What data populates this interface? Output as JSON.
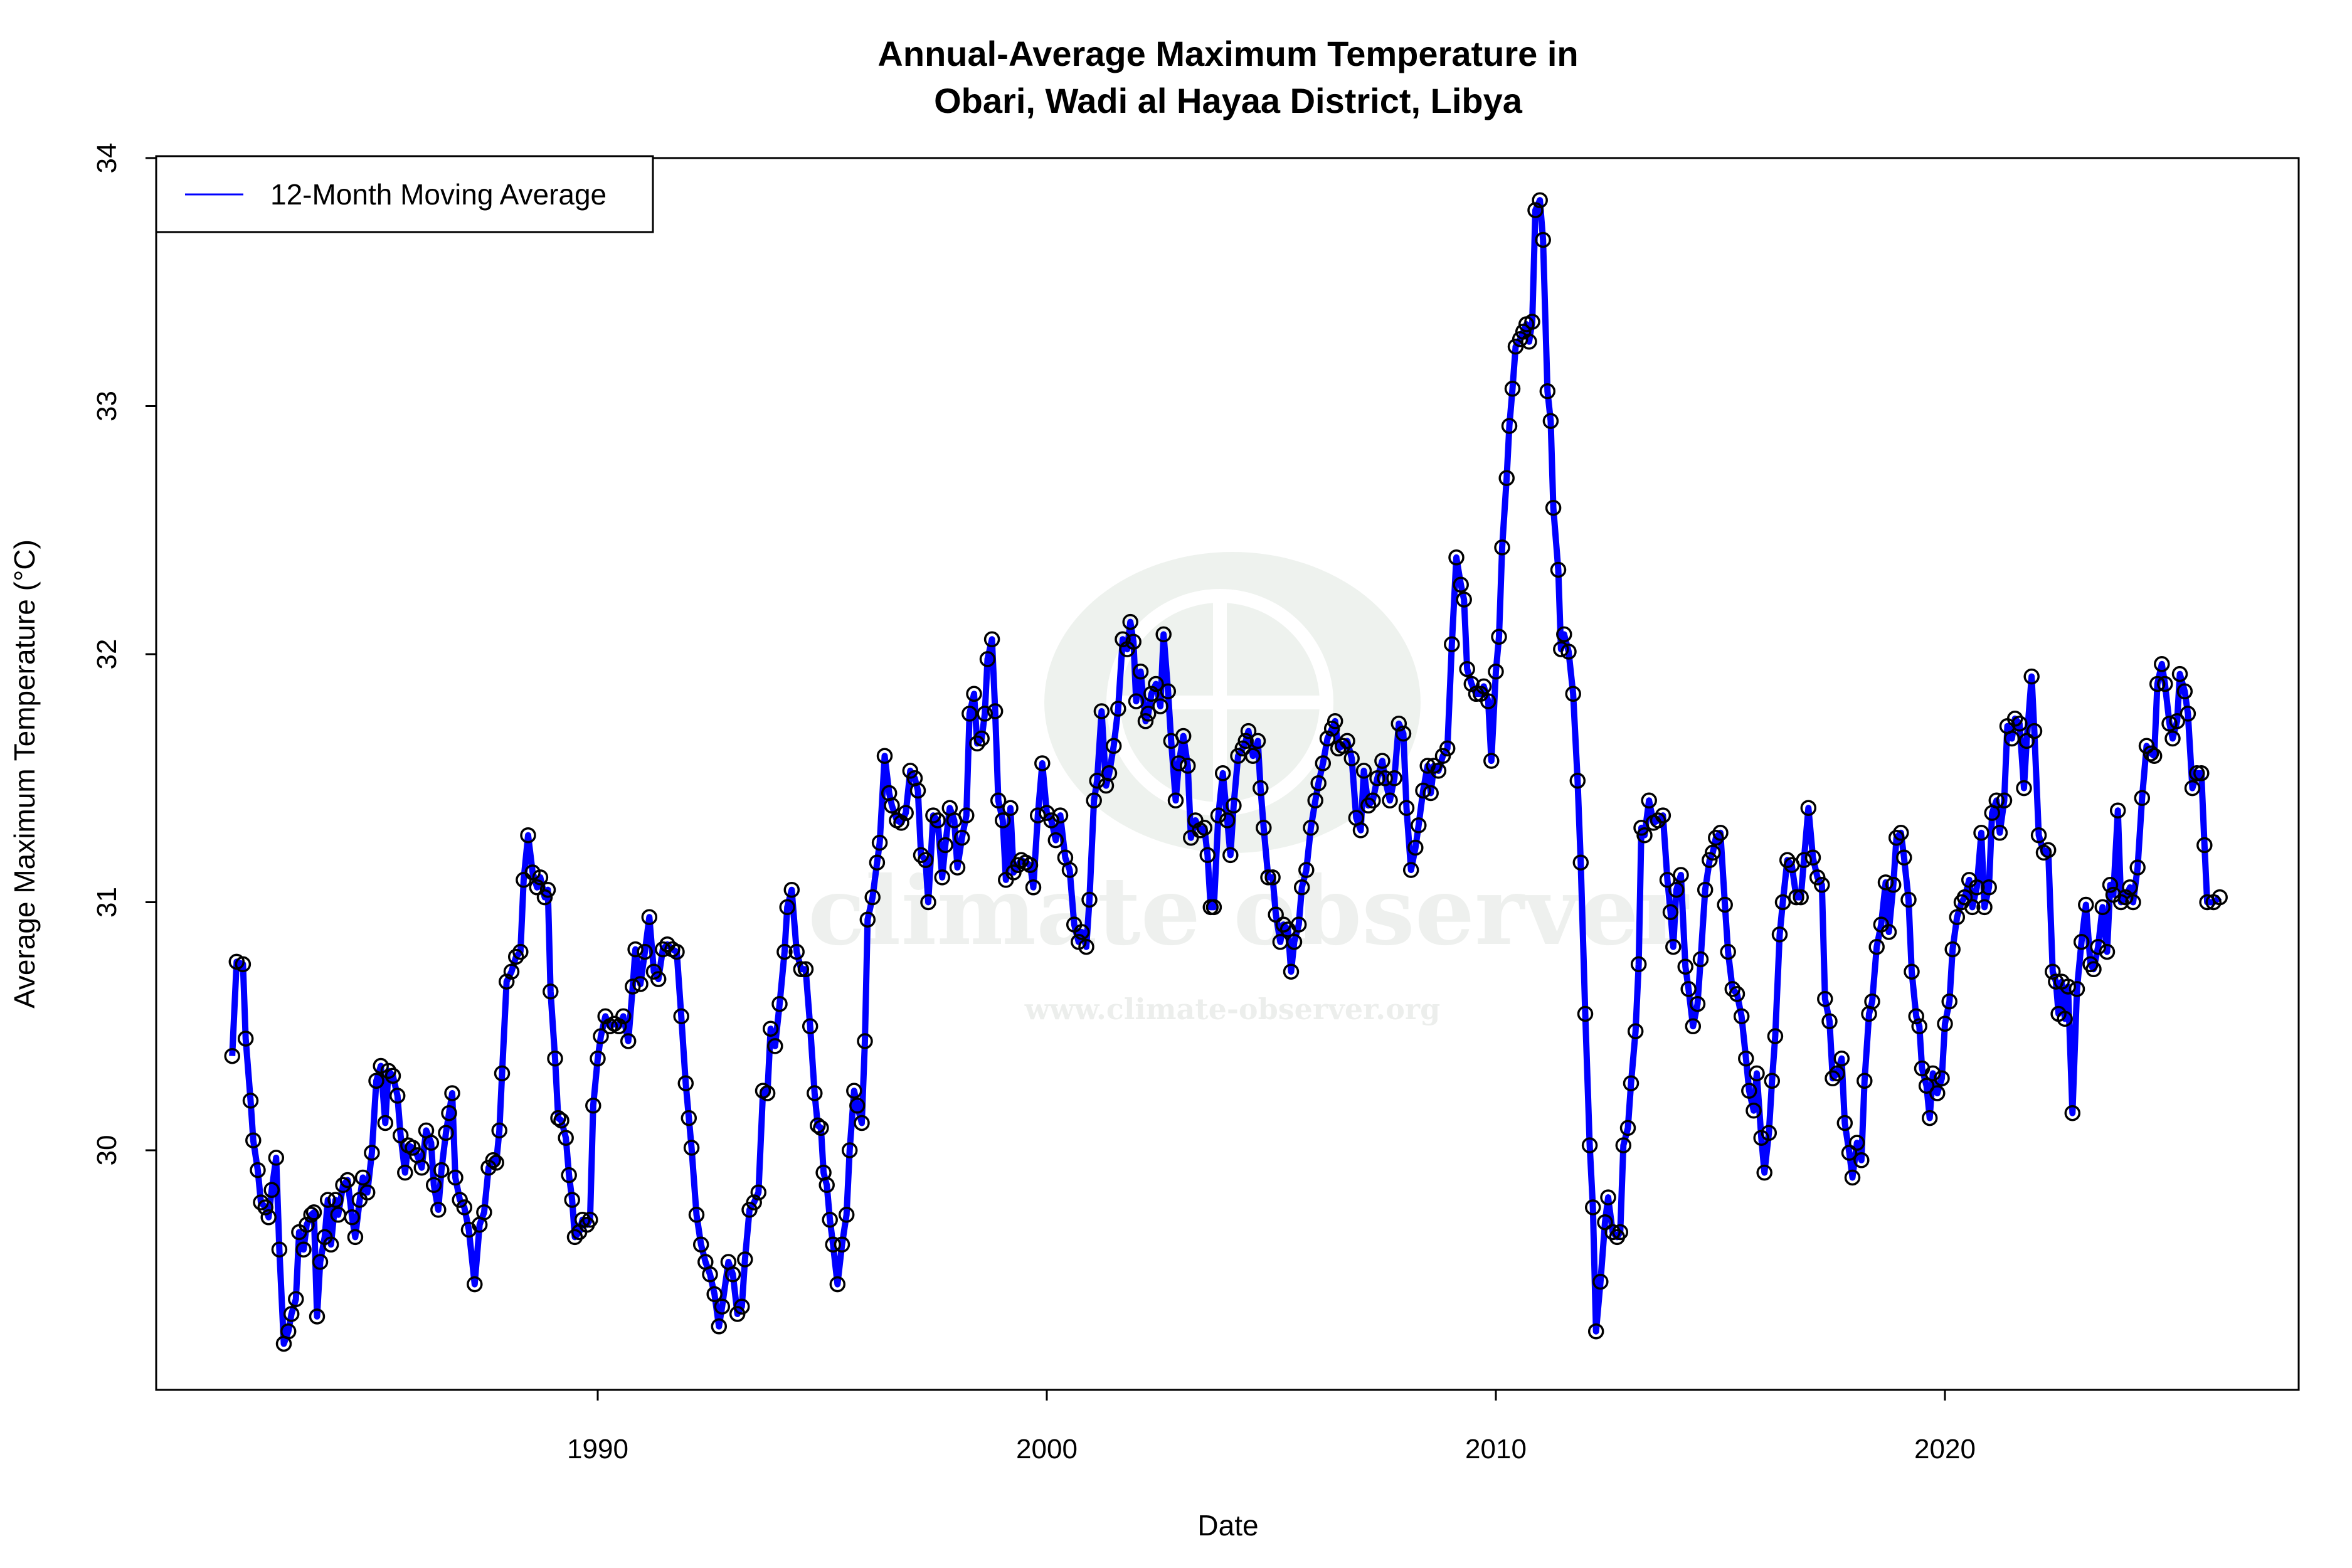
{
  "chart_data": {
    "type": "line",
    "title": "Annual-Average Maximum Temperature in\nObari, Wadi al Hayaa District, Libya",
    "title_lines": [
      "Annual-Average Maximum Temperature in",
      "Obari, Wadi al Hayaa District, Libya"
    ],
    "xlabel": "Date",
    "ylabel": "Average Maximum Temperature (°C)",
    "x_ticks": [
      "1990",
      "2000",
      "2010",
      "2020"
    ],
    "y_ticks": [
      "30",
      "31",
      "32",
      "33",
      "34"
    ],
    "xlim": [
      1981.7,
      2026.3
    ],
    "ylim": [
      29.2,
      34.0
    ],
    "grid": false,
    "legend_position": "top-left",
    "watermark": {
      "name": "climate observer",
      "url": "www.climate-observer.org"
    },
    "colors": {
      "line": "#0000FF",
      "points": "#000000",
      "watermark": "#e9efea"
    },
    "series": [
      {
        "name": "12-Month Moving Average",
        "markers": "open-circle",
        "x": [
          1981.86,
          1981.96,
          1982.1,
          1982.16,
          1982.27,
          1982.33,
          1982.43,
          1982.5,
          1982.6,
          1982.67,
          1982.74,
          1982.84,
          1982.91,
          1983.01,
          1983.11,
          1983.18,
          1983.28,
          1983.35,
          1983.45,
          1983.52,
          1983.62,
          1983.68,
          1983.75,
          1983.82,
          1983.92,
          1983.99,
          1984.06,
          1984.16,
          1984.22,
          1984.33,
          1984.43,
          1984.53,
          1984.6,
          1984.7,
          1984.77,
          1984.87,
          1984.97,
          1985.07,
          1985.17,
          1985.27,
          1985.34,
          1985.44,
          1985.54,
          1985.61,
          1985.71,
          1985.78,
          1985.88,
          1985.98,
          1986.08,
          1986.18,
          1986.29,
          1986.35,
          1986.45,
          1986.52,
          1986.62,
          1986.69,
          1986.76,
          1986.83,
          1986.93,
          1987.03,
          1987.13,
          1987.26,
          1987.37,
          1987.47,
          1987.57,
          1987.67,
          1987.74,
          1987.81,
          1987.87,
          1987.97,
          1988.08,
          1988.18,
          1988.28,
          1988.35,
          1988.45,
          1988.55,
          1988.65,
          1988.72,
          1988.82,
          1988.89,
          1988.95,
          1989.05,
          1989.12,
          1989.19,
          1989.29,
          1989.36,
          1989.43,
          1989.49,
          1989.59,
          1989.66,
          1989.76,
          1989.83,
          1989.9,
          1990.0,
          1990.07,
          1990.17,
          1990.27,
          1990.37,
          1990.47,
          1990.57,
          1990.68,
          1990.78,
          1990.84,
          1990.95,
          1991.05,
          1991.15,
          1991.25,
          1991.35,
          1991.45,
          1991.55,
          1991.66,
          1991.76,
          1991.86,
          1991.96,
          1992.03,
          1992.09,
          1992.2,
          1992.3,
          1992.4,
          1992.5,
          1992.6,
          1992.7,
          1992.77,
          1992.91,
          1993.01,
          1993.11,
          1993.21,
          1993.28,
          1993.38,
          1993.48,
          1993.58,
          1993.68,
          1993.78,
          1993.85,
          1993.95,
          1994.05,
          1994.16,
          1994.22,
          1994.32,
          1994.43,
          1994.53,
          1994.63,
          1994.73,
          1994.83,
          1994.9,
          1994.97,
          1995.03,
          1995.1,
          1995.17,
          1995.24,
          1995.34,
          1995.44,
          1995.54,
          1995.61,
          1995.71,
          1995.78,
          1995.88,
          1995.95,
          1996.01,
          1996.12,
          1996.22,
          1996.28,
          1996.39,
          1996.49,
          1996.55,
          1996.66,
          1996.76,
          1996.86,
          1996.96,
          1997.06,
          1997.13,
          1997.2,
          1997.3,
          1997.36,
          1997.47,
          1997.57,
          1997.67,
          1997.74,
          1997.84,
          1997.94,
          1998.01,
          1998.11,
          1998.21,
          1998.28,
          1998.38,
          1998.45,
          1998.55,
          1998.62,
          1998.68,
          1998.78,
          1998.85,
          1998.92,
          1999.02,
          1999.09,
          1999.19,
          1999.26,
          1999.36,
          1999.43,
          1999.53,
          1999.63,
          1999.7,
          1999.8,
          1999.9,
          2000.0,
          2000.1,
          2000.2,
          2000.3,
          2000.41,
          2000.51,
          2000.61,
          2000.71,
          2000.78,
          2000.88,
          2000.95,
          2001.05,
          2001.12,
          2001.22,
          2001.32,
          2001.39,
          2001.49,
          2001.59,
          2001.69,
          2001.79,
          2001.86,
          2001.93,
          2001.99,
          2002.09,
          2002.2,
          2002.26,
          2002.33,
          2002.43,
          2002.53,
          2002.6,
          2002.7,
          2002.77,
          2002.87,
          2002.94,
          2003.04,
          2003.14,
          2003.21,
          2003.31,
          2003.41,
          2003.51,
          2003.58,
          2003.65,
          2003.72,
          2003.82,
          2003.92,
          2004.02,
          2004.09,
          2004.16,
          2004.26,
          2004.36,
          2004.43,
          2004.49,
          2004.59,
          2004.7,
          2004.76,
          2004.83,
          2004.93,
          2005.03,
          2005.1,
          2005.2,
          2005.27,
          2005.37,
          2005.44,
          2005.51,
          2005.61,
          2005.68,
          2005.78,
          2005.88,
          2005.98,
          2006.05,
          2006.15,
          2006.25,
          2006.35,
          2006.42,
          2006.49,
          2006.59,
          2006.69,
          2006.79,
          2006.89,
          2006.99,
          2007.06,
          2007.16,
          2007.26,
          2007.36,
          2007.47,
          2007.53,
          2007.64,
          2007.74,
          2007.84,
          2007.94,
          2008.01,
          2008.11,
          2008.21,
          2008.28,
          2008.38,
          2008.48,
          2008.55,
          2008.62,
          2008.72,
          2008.82,
          2008.92,
          2009.02,
          2009.12,
          2009.22,
          2009.29,
          2009.36,
          2009.46,
          2009.56,
          2009.66,
          2009.73,
          2009.83,
          2009.9,
          2010.0,
          2010.07,
          2010.14,
          2010.24,
          2010.3,
          2010.37,
          2010.44,
          2010.54,
          2010.61,
          2010.68,
          2010.74,
          2010.81,
          2010.88,
          2010.98,
          2011.05,
          2011.15,
          2011.22,
          2011.28,
          2011.39,
          2011.45,
          2011.52,
          2011.62,
          2011.72,
          2011.82,
          2011.89,
          2011.99,
          2012.09,
          2012.16,
          2012.23,
          2012.33,
          2012.43,
          2012.5,
          2012.6,
          2012.7,
          2012.77,
          2012.84,
          2012.94,
          2013.01,
          2013.11,
          2013.18,
          2013.24,
          2013.31,
          2013.41,
          2013.51,
          2013.61,
          2013.72,
          2013.82,
          2013.89,
          2013.95,
          2014.02,
          2014.12,
          2014.22,
          2014.29,
          2014.39,
          2014.49,
          2014.56,
          2014.66,
          2014.76,
          2014.83,
          2014.9,
          2015.0,
          2015.1,
          2015.17,
          2015.27,
          2015.37,
          2015.47,
          2015.57,
          2015.64,
          2015.74,
          2015.81,
          2015.91,
          2015.98,
          2016.08,
          2016.15,
          2016.22,
          2016.32,
          2016.39,
          2016.49,
          2016.59,
          2016.69,
          2016.79,
          2016.86,
          2016.96,
          2017.06,
          2017.16,
          2017.26,
          2017.33,
          2017.43,
          2017.5,
          2017.6,
          2017.7,
          2017.77,
          2017.87,
          2017.94,
          2018.04,
          2018.14,
          2018.21,
          2018.31,
          2018.38,
          2018.48,
          2018.58,
          2018.68,
          2018.75,
          2018.85,
          2018.92,
          2019.02,
          2019.09,
          2019.19,
          2019.26,
          2019.36,
          2019.43,
          2019.49,
          2019.59,
          2019.66,
          2019.73,
          2019.83,
          2019.93,
          2020.0,
          2020.1,
          2020.17,
          2020.27,
          2020.37,
          2020.44,
          2020.54,
          2020.61,
          2020.71,
          2020.81,
          2020.88,
          2020.98,
          2021.05,
          2021.15,
          2021.22,
          2021.32,
          2021.39,
          2021.49,
          2021.56,
          2021.66,
          2021.76,
          2021.82,
          2021.93,
          2021.99,
          2022.09,
          2022.2,
          2022.3,
          2022.4,
          2022.47,
          2022.53,
          2022.6,
          2022.67,
          2022.74,
          2022.84,
          2022.94,
          2023.04,
          2023.14,
          2023.24,
          2023.31,
          2023.41,
          2023.51,
          2023.61,
          2023.68,
          2023.75,
          2023.85,
          2023.92,
          2024.02,
          2024.12,
          2024.19,
          2024.29,
          2024.39,
          2024.49,
          2024.59,
          2024.66,
          2024.73,
          2024.83,
          2024.9,
          2025.0,
          2025.07,
          2025.17,
          2025.23,
          2025.34,
          2025.41,
          2025.51,
          2025.61,
          2025.71,
          2025.78,
          2025.84,
          2025.98,
          2026.12
        ],
        "y": [
          30.38,
          30.76,
          30.75,
          30.45,
          30.2,
          30.04,
          29.92,
          29.79,
          29.77,
          29.73,
          29.84,
          29.97,
          29.6,
          29.22,
          29.27,
          29.34,
          29.4,
          29.67,
          29.6,
          29.7,
          29.74,
          29.75,
          29.33,
          29.55,
          29.65,
          29.8,
          29.62,
          29.8,
          29.74,
          29.86,
          29.88,
          29.73,
          29.65,
          29.8,
          29.89,
          29.83,
          29.99,
          30.28,
          30.34,
          30.11,
          30.32,
          30.3,
          30.22,
          30.06,
          29.91,
          30.02,
          30.01,
          29.98,
          29.93,
          30.08,
          30.03,
          29.86,
          29.76,
          29.92,
          30.07,
          30.15,
          30.23,
          29.89,
          29.8,
          29.77,
          29.68,
          29.46,
          29.7,
          29.75,
          29.93,
          29.96,
          29.95,
          30.08,
          30.31,
          30.68,
          30.72,
          30.78,
          30.8,
          31.09,
          31.27,
          31.12,
          31.06,
          31.1,
          31.02,
          31.05,
          30.64,
          30.37,
          30.13,
          30.12,
          30.05,
          29.9,
          29.8,
          29.65,
          29.67,
          29.72,
          29.7,
          29.72,
          30.18,
          30.37,
          30.46,
          30.54,
          30.5,
          30.51,
          30.5,
          30.54,
          30.44,
          30.66,
          30.81,
          30.67,
          30.8,
          30.94,
          30.72,
          30.69,
          30.81,
          30.83,
          30.81,
          30.8,
          30.54,
          30.27,
          30.13,
          30.01,
          29.74,
          29.62,
          29.55,
          29.5,
          29.42,
          29.29,
          29.37,
          29.55,
          29.5,
          29.34,
          29.37,
          29.56,
          29.76,
          29.79,
          29.83,
          30.24,
          30.23,
          30.49,
          30.42,
          30.59,
          30.8,
          30.98,
          31.05,
          30.8,
          30.73,
          30.73,
          30.5,
          30.23,
          30.1,
          30.09,
          29.91,
          29.86,
          29.72,
          29.62,
          29.46,
          29.62,
          29.74,
          30.0,
          30.24,
          30.18,
          30.11,
          30.44,
          30.93,
          31.02,
          31.16,
          31.24,
          31.59,
          31.44,
          31.39,
          31.33,
          31.32,
          31.36,
          31.53,
          31.5,
          31.45,
          31.19,
          31.17,
          31.0,
          31.35,
          31.33,
          31.1,
          31.23,
          31.38,
          31.33,
          31.14,
          31.26,
          31.35,
          31.76,
          31.84,
          31.64,
          31.66,
          31.76,
          31.98,
          32.06,
          31.77,
          31.41,
          31.33,
          31.09,
          31.38,
          31.12,
          31.15,
          31.17,
          31.16,
          31.15,
          31.06,
          31.35,
          31.56,
          31.36,
          31.33,
          31.25,
          31.35,
          31.18,
          31.13,
          30.91,
          30.84,
          30.88,
          30.82,
          31.01,
          31.41,
          31.49,
          31.77,
          31.47,
          31.52,
          31.63,
          31.78,
          32.06,
          32.02,
          32.13,
          32.05,
          31.81,
          31.93,
          31.73,
          31.76,
          31.84,
          31.88,
          31.79,
          32.08,
          31.85,
          31.65,
          31.41,
          31.56,
          31.67,
          31.55,
          31.26,
          31.33,
          31.29,
          31.3,
          31.19,
          30.98,
          30.98,
          31.35,
          31.52,
          31.33,
          31.19,
          31.39,
          31.59,
          31.62,
          31.65,
          31.69,
          31.59,
          31.65,
          31.46,
          31.3,
          31.1,
          31.1,
          30.95,
          30.84,
          30.91,
          30.89,
          30.72,
          30.84,
          30.91,
          31.06,
          31.13,
          31.3,
          31.41,
          31.48,
          31.56,
          31.66,
          31.7,
          31.73,
          31.62,
          31.63,
          31.65,
          31.58,
          31.34,
          31.29,
          31.53,
          31.39,
          31.41,
          31.5,
          31.57,
          31.5,
          31.41,
          31.5,
          31.72,
          31.68,
          31.38,
          31.13,
          31.22,
          31.31,
          31.45,
          31.55,
          31.44,
          31.55,
          31.53,
          31.59,
          31.62,
          32.04,
          32.39,
          32.28,
          32.22,
          31.94,
          31.88,
          31.84,
          31.84,
          31.87,
          31.81,
          31.57,
          31.93,
          32.07,
          32.43,
          32.71,
          32.92,
          33.07,
          33.24,
          33.27,
          33.3,
          33.33,
          33.26,
          33.34,
          33.79,
          33.83,
          33.67,
          33.06,
          32.94,
          32.59,
          32.34,
          32.02,
          32.08,
          32.01,
          31.84,
          31.49,
          31.16,
          30.55,
          30.02,
          29.77,
          29.27,
          29.47,
          29.71,
          29.81,
          29.67,
          29.65,
          29.67,
          30.02,
          30.09,
          30.27,
          30.48,
          30.75,
          31.3,
          31.27,
          31.41,
          31.32,
          31.33,
          31.35,
          31.09,
          30.96,
          30.82,
          31.05,
          31.11,
          30.74,
          30.65,
          30.5,
          30.59,
          30.77,
          31.05,
          31.17,
          31.2,
          31.26,
          31.28,
          30.99,
          30.8,
          30.65,
          30.63,
          30.54,
          30.37,
          30.24,
          30.16,
          30.31,
          30.05,
          29.91,
          30.07,
          30.28,
          30.46,
          30.87,
          31.0,
          31.17,
          31.15,
          31.02,
          31.02,
          31.17,
          31.38,
          31.18,
          31.1,
          31.07,
          30.61,
          30.52,
          30.29,
          30.31,
          30.37,
          30.11,
          29.99,
          29.89,
          30.03,
          29.96,
          30.28,
          30.55,
          30.6,
          30.82,
          30.91,
          31.08,
          30.88,
          31.07,
          31.26,
          31.28,
          31.18,
          31.01,
          30.72,
          30.54,
          30.5,
          30.33,
          30.26,
          30.13,
          30.31,
          30.23,
          30.29,
          30.51,
          30.6,
          30.81,
          30.94,
          31.0,
          31.02,
          31.09,
          30.98,
          31.06,
          31.28,
          30.98,
          31.06,
          31.36,
          31.41,
          31.28,
          31.41,
          31.71,
          31.66,
          31.74,
          31.72,
          31.46,
          31.65,
          31.91,
          31.69,
          31.27,
          31.2,
          31.21,
          30.72,
          30.68,
          30.55,
          30.68,
          30.53,
          30.66,
          30.15,
          30.65,
          30.84,
          30.99,
          30.75,
          30.73,
          30.82,
          30.98,
          30.8,
          31.07,
          31.03,
          31.37,
          31.0,
          31.02,
          31.06,
          31.0,
          31.14,
          31.42,
          31.63,
          31.6,
          31.59,
          31.88,
          31.96,
          31.88,
          31.72,
          31.66,
          31.73,
          31.92,
          31.85,
          31.76,
          31.46,
          31.52,
          31.52,
          31.23,
          31.0,
          31.0,
          31.02
        ]
      }
    ]
  }
}
